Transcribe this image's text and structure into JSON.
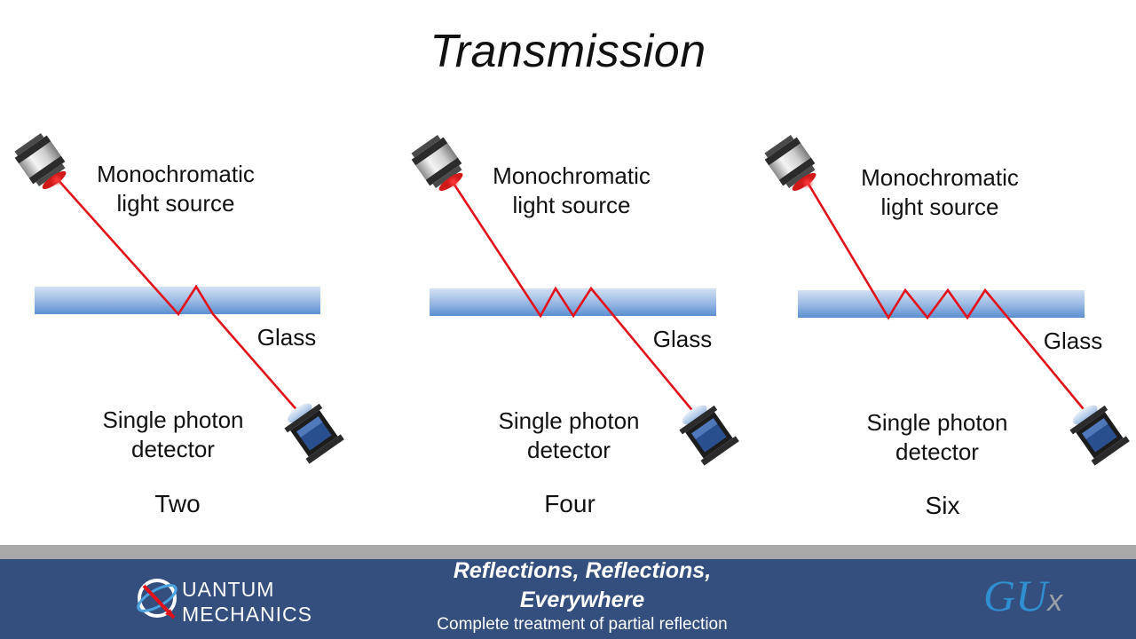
{
  "title": "Transmission",
  "panels": [
    {
      "source_label_1": "Monochromatic",
      "source_label_2": "light source",
      "glass_label": "Glass",
      "detector_label_1": "Single photon",
      "detector_label_2": "detector",
      "count": "Two"
    },
    {
      "source_label_1": "Monochromatic",
      "source_label_2": "light source",
      "glass_label": "Glass",
      "detector_label_1": "Single photon",
      "detector_label_2": "detector",
      "count": "Four"
    },
    {
      "source_label_1": "Monochromatic",
      "source_label_2": "light source",
      "glass_label": "Glass",
      "detector_label_1": "Single photon",
      "detector_label_2": "detector",
      "count": "Six"
    }
  ],
  "footer": {
    "logo_line_1": "UANTUM",
    "logo_line_2": "MECHANICS",
    "title_line_1": "Reflections, Reflections,",
    "title_line_2": "Everywhere",
    "subtitle": "Complete treatment of partial reflection",
    "brand_main": "GU",
    "brand_x": "x"
  },
  "colors": {
    "beam": "#e2121b",
    "footer": "#344e7d",
    "glass_top": "#c6d8ef",
    "glass_bottom": "#5b8fd1"
  }
}
